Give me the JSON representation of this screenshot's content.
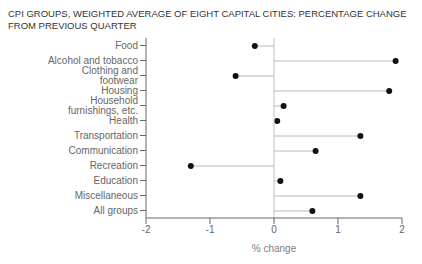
{
  "chart_data": {
    "type": "lollipop",
    "orientation": "horizontal",
    "title": "CPI GROUPS, WEIGHTED AVERAGE OF EIGHT CAPITAL CITIES: PERCENTAGE CHANGE FROM PREVIOUS QUARTER",
    "categories": [
      "Food",
      "Alcohol and tobacco",
      "Clothing and footwear",
      "Housing",
      "Household furnishings, etc.",
      "Health",
      "Transportation",
      "Communication",
      "Recreation",
      "Education",
      "Miscellaneous",
      "All groups"
    ],
    "values": [
      -0.3,
      1.9,
      -0.6,
      1.8,
      0.15,
      0.05,
      1.35,
      0.65,
      -1.3,
      0.1,
      1.35,
      0.6
    ],
    "xlim": [
      -2,
      2
    ],
    "xticks": [
      -2,
      -1,
      0,
      1,
      2
    ],
    "xlabel": "% change",
    "color": "#111111",
    "grid": false
  }
}
